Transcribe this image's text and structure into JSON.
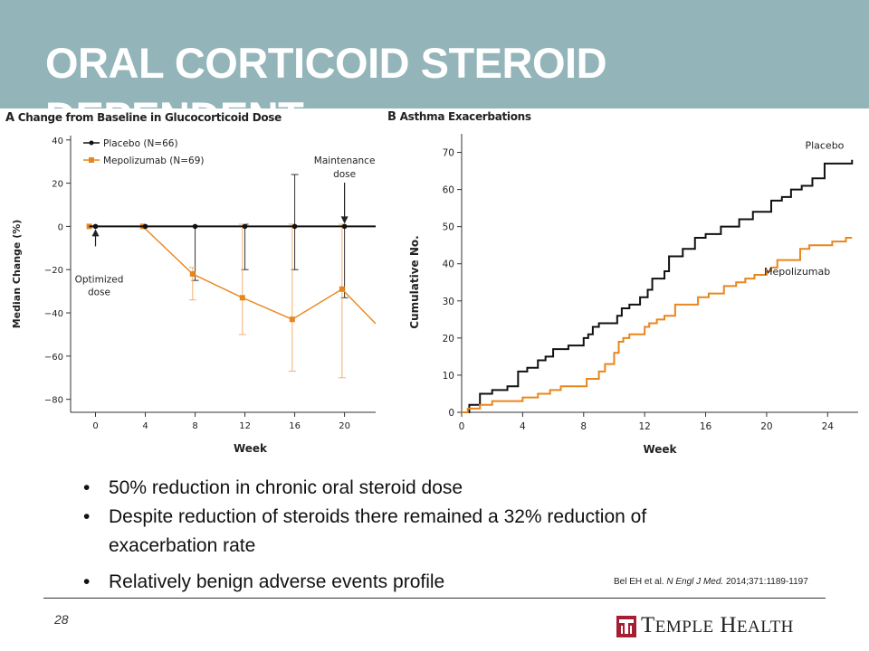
{
  "slide": {
    "title": "ORAL CORTICOID STEROID DEPENDENT",
    "page_number": "28",
    "colors": {
      "header_band": "#93b4b9",
      "placebo": "#111111",
      "mepolizumab": "#e8861e",
      "logo": "#a41e34"
    }
  },
  "bullets": [
    "50% reduction in chronic oral steroid dose",
    "Despite reduction of steroids there remained a 32% reduction of exacerbation rate",
    "Relatively benign adverse events profile"
  ],
  "citation": {
    "authors": "Bel EH et al.",
    "journal": "N Engl J Med.",
    "details": "2014;371:1189-1197"
  },
  "logo": {
    "first": "T",
    "first_rest": "EMPLE",
    "second": "H",
    "second_rest": "EALTH",
    "icon": "temple-t-icon"
  },
  "chart_data": [
    {
      "type": "line",
      "panel_letter": "A",
      "title": "Change from Baseline in Glucocorticoid Dose",
      "xlabel": "Week",
      "ylabel": "Median Change (%)",
      "x_ticks": [
        0,
        4,
        8,
        12,
        16,
        20
      ],
      "y_ticks": [
        40,
        20,
        0,
        -20,
        -40,
        -60,
        -80
      ],
      "xlim": [
        -2,
        22.5
      ],
      "ylim": [
        -86,
        42
      ],
      "grid": false,
      "legend_position": "top-left",
      "series": [
        {
          "name": "Placebo (N=66)",
          "color": "#111111",
          "marker": "circle",
          "x": [
            -0.5,
            0,
            4,
            8,
            12,
            16,
            20,
            22.5
          ],
          "y": [
            0,
            0,
            0,
            0,
            0,
            0,
            0,
            0
          ],
          "error_bars": [
            {
              "x": 8,
              "low": -25,
              "high": 0
            },
            {
              "x": 12,
              "low": -20,
              "high": 1
            },
            {
              "x": 16,
              "low": -20,
              "high": 24
            },
            {
              "x": 20,
              "low": -33,
              "high": 0
            }
          ]
        },
        {
          "name": "Mepolizumab (N=69)",
          "color": "#e8861e",
          "marker": "square",
          "x": [
            -0.5,
            3.8,
            7.8,
            11.8,
            15.8,
            19.8,
            22.5
          ],
          "y": [
            0,
            0,
            -22,
            -33,
            -43,
            -29,
            -45
          ],
          "error_bars": [
            {
              "x": 7.8,
              "low": -34,
              "high": -19
            },
            {
              "x": 11.8,
              "low": -50,
              "high": 1
            },
            {
              "x": 15.8,
              "low": -67,
              "high": 1
            },
            {
              "x": 19.8,
              "low": -70,
              "high": 1
            }
          ]
        }
      ],
      "annotations": [
        {
          "lines": [
            "Maintenance",
            "dose"
          ],
          "x": 20,
          "y": 0,
          "placement": "above"
        },
        {
          "lines": [
            "Optimized",
            "dose"
          ],
          "x": 0,
          "y": 0,
          "placement": "below"
        }
      ]
    },
    {
      "type": "line",
      "step": true,
      "panel_letter": "B",
      "title": "Asthma Exacerbations",
      "xlabel": "Week",
      "ylabel": "Cumulative No.",
      "x_ticks": [
        0,
        4,
        8,
        12,
        16,
        20,
        24
      ],
      "y_ticks": [
        0,
        10,
        20,
        30,
        40,
        50,
        60,
        70
      ],
      "xlim": [
        0,
        26
      ],
      "ylim": [
        0,
        75
      ],
      "grid": false,
      "series": [
        {
          "name": "Placebo",
          "color": "#111111",
          "label_at": [
            23.8,
            71
          ],
          "x": [
            0,
            0.5,
            1.2,
            2,
            3,
            3.7,
            4.3,
            5,
            5.5,
            6,
            7,
            8,
            8.3,
            8.6,
            9,
            10.2,
            10.5,
            11,
            11.7,
            12.2,
            12.5,
            13.3,
            13.6,
            14.5,
            15.3,
            16,
            17,
            18.2,
            19.1,
            20.3,
            21,
            21.6,
            22.3,
            23,
            23.8,
            25.6
          ],
          "y": [
            0,
            2,
            5,
            6,
            7,
            11,
            12,
            14,
            15,
            17,
            18,
            20,
            21,
            23,
            24,
            26,
            28,
            29,
            31,
            33,
            36,
            38,
            42,
            44,
            47,
            48,
            50,
            52,
            54,
            57,
            58,
            60,
            61,
            63,
            67,
            68
          ]
        },
        {
          "name": "Mepolizumab",
          "color": "#e8861e",
          "label_at": [
            22,
            37
          ],
          "x": [
            0,
            0.4,
            1.2,
            2,
            4,
            5,
            5.8,
            6.5,
            8.2,
            9,
            9.4,
            10,
            10.3,
            10.6,
            11,
            12,
            12.3,
            12.8,
            13.3,
            14,
            15.5,
            16.2,
            17.2,
            18,
            18.6,
            19.2,
            20,
            20.3,
            20.7,
            22.2,
            22.8,
            24.3,
            25.2,
            25.6
          ],
          "y": [
            0,
            1,
            2,
            3,
            4,
            5,
            6,
            7,
            9,
            11,
            13,
            16,
            19,
            20,
            21,
            23,
            24,
            25,
            26,
            29,
            31,
            32,
            34,
            35,
            36,
            37,
            38,
            39,
            41,
            44,
            45,
            46,
            47,
            47
          ]
        }
      ]
    }
  ]
}
